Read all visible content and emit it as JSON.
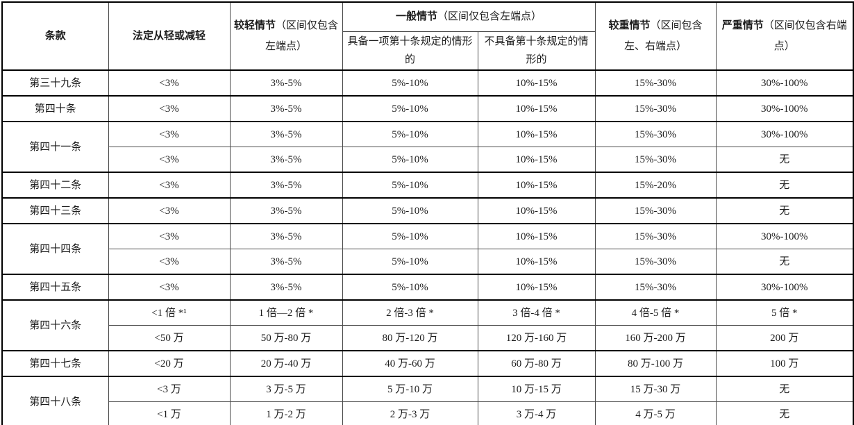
{
  "page": {
    "background": "#ffffff",
    "text_color": "#1c1c1c",
    "thin_border_color": "#4a4a4a",
    "thick_border_color": "#000000"
  },
  "table": {
    "header": {
      "article": "条款",
      "statutory": "法定从轻或减轻",
      "light_bold": "较轻情节",
      "light_rest": "（区间仅包含左端点）",
      "general_bold": "一般情节",
      "general_rest": "（区间仅包含左端点）",
      "general_sub1": "具备一项第十条规定的情形的",
      "general_sub2": "不具备第十条规定的情形的",
      "heavy_bold": "较重情节",
      "heavy_rest": "（区间包含左、右端点）",
      "severe_bold": "严重情节",
      "severe_rest": "（区间仅包含右端点）"
    },
    "groups": [
      {
        "article": "第三十九条",
        "rows": [
          [
            "<3%",
            "3%-5%",
            "5%-10%",
            "10%-15%",
            "15%-30%",
            "30%-100%"
          ]
        ]
      },
      {
        "article": "第四十条",
        "rows": [
          [
            "<3%",
            "3%-5%",
            "5%-10%",
            "10%-15%",
            "15%-30%",
            "30%-100%"
          ]
        ]
      },
      {
        "article": "第四十一条",
        "rows": [
          [
            "<3%",
            "3%-5%",
            "5%-10%",
            "10%-15%",
            "15%-30%",
            "30%-100%"
          ],
          [
            "<3%",
            "3%-5%",
            "5%-10%",
            "10%-15%",
            "15%-30%",
            "无"
          ]
        ]
      },
      {
        "article": "第四十二条",
        "rows": [
          [
            "<3%",
            "3%-5%",
            "5%-10%",
            "10%-15%",
            "15%-20%",
            "无"
          ]
        ]
      },
      {
        "article": "第四十三条",
        "rows": [
          [
            "<3%",
            "3%-5%",
            "5%-10%",
            "10%-15%",
            "15%-30%",
            "无"
          ]
        ]
      },
      {
        "article": "第四十四条",
        "rows": [
          [
            "<3%",
            "3%-5%",
            "5%-10%",
            "10%-15%",
            "15%-30%",
            "30%-100%"
          ],
          [
            "<3%",
            "3%-5%",
            "5%-10%",
            "10%-15%",
            "15%-30%",
            "无"
          ]
        ]
      },
      {
        "article": "第四十五条",
        "rows": [
          [
            "<3%",
            "3%-5%",
            "5%-10%",
            "10%-15%",
            "15%-30%",
            "30%-100%"
          ]
        ]
      },
      {
        "article": "第四十六条",
        "rows": [
          [
            "<1 倍 *¹",
            "1 倍—2 倍 *",
            "2 倍-3 倍 *",
            "3 倍-4 倍 *",
            "4 倍-5 倍 *",
            "5 倍 *"
          ],
          [
            "<50 万",
            "50 万-80 万",
            "80 万-120 万",
            "120 万-160 万",
            "160 万-200 万",
            "200 万"
          ]
        ]
      },
      {
        "article": "第四十七条",
        "rows": [
          [
            "<20 万",
            "20 万-40 万",
            "40 万-60 万",
            "60 万-80 万",
            "80 万-100 万",
            "100 万"
          ]
        ]
      },
      {
        "article": "第四十八条",
        "rows": [
          [
            "<3 万",
            "3 万-5 万",
            "5 万-10 万",
            "10 万-15 万",
            "15 万-30 万",
            "无"
          ],
          [
            "<1 万",
            "1 万-2 万",
            "2 万-3 万",
            "3 万-4 万",
            "4 万-5 万",
            "无"
          ]
        ]
      }
    ]
  }
}
